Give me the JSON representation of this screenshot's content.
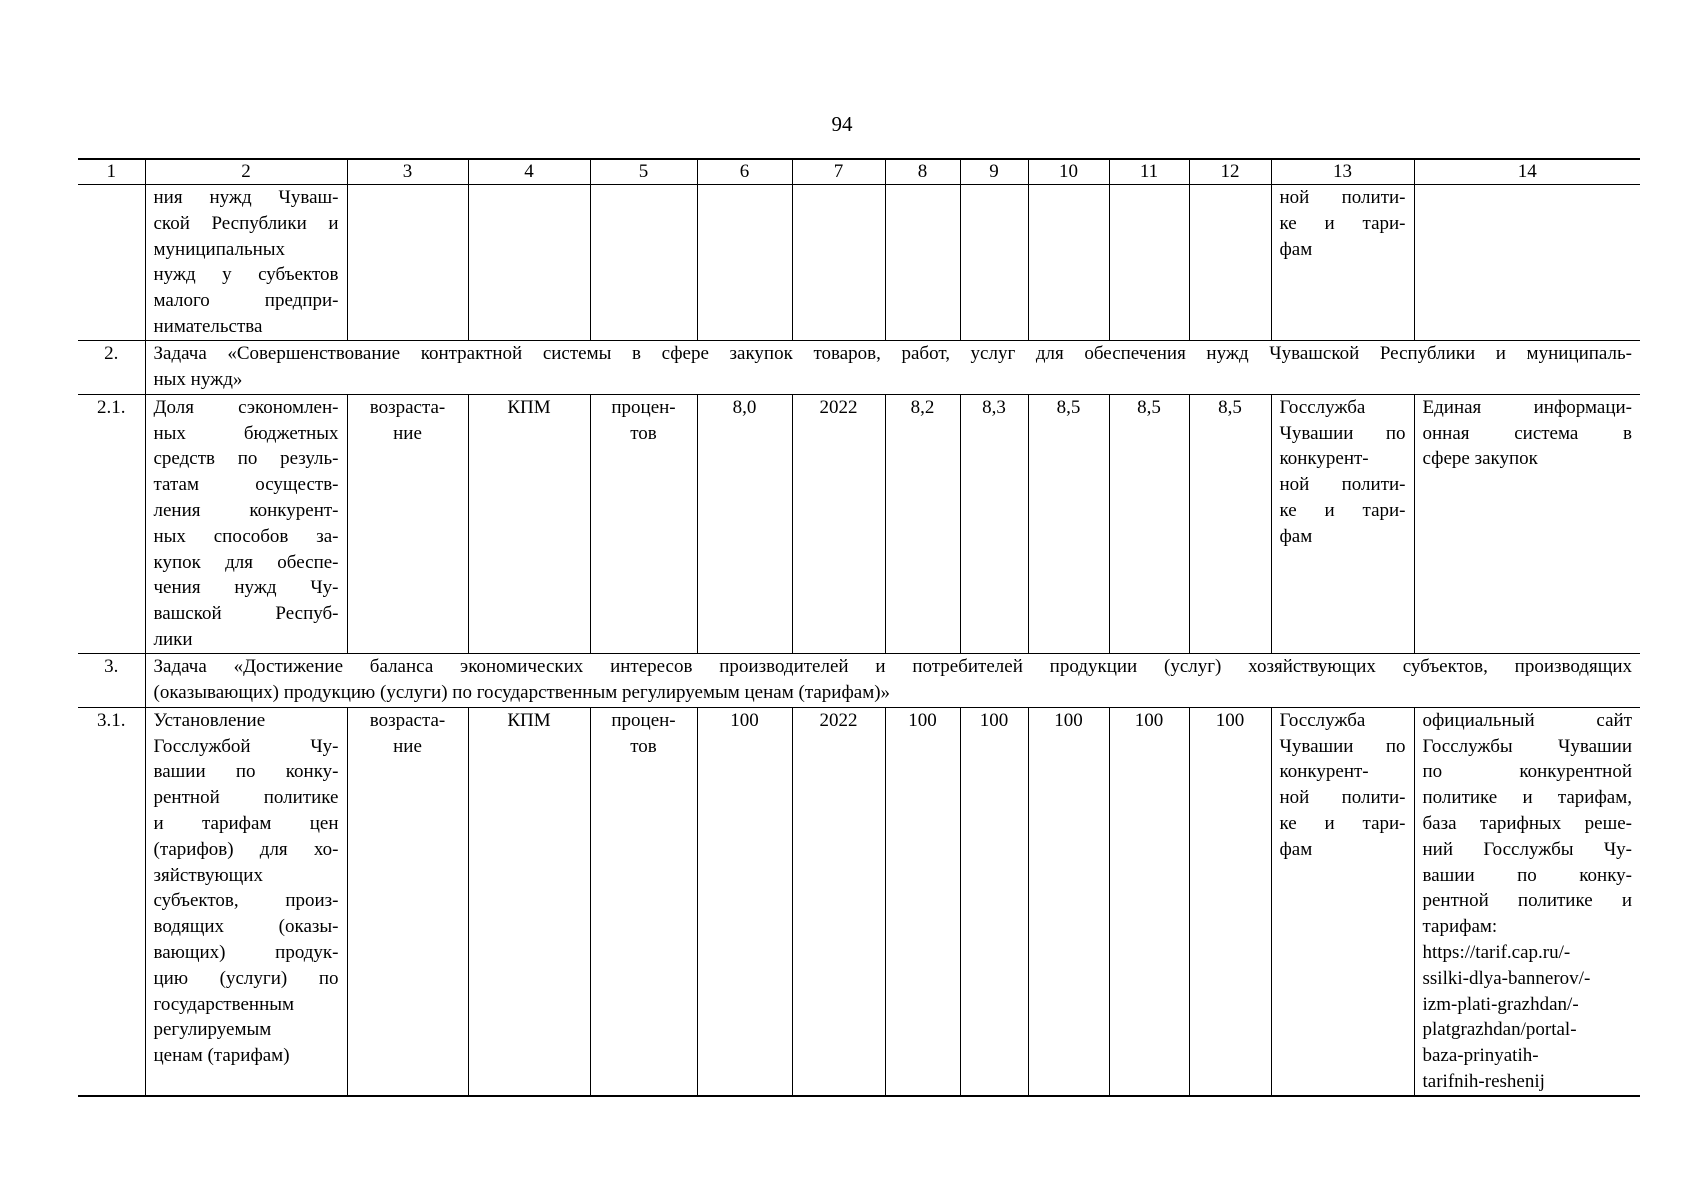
{
  "page_number": "94",
  "header": [
    "1",
    "2",
    "3",
    "4",
    "5",
    "6",
    "7",
    "8",
    "9",
    "10",
    "11",
    "12",
    "13",
    "14"
  ],
  "rows": [
    {
      "type": "data",
      "height": 155,
      "cells": [
        [],
        [
          "ния нужд Чуваш-",
          "ской Республики и",
          "муниципальных",
          "нужд у субъектов",
          "малого предпри-",
          "нимательства"
        ],
        [],
        [],
        [],
        [],
        [],
        [],
        [],
        [],
        [],
        [],
        [
          "ной полити-",
          "ке и тари-",
          "фам"
        ],
        []
      ]
    },
    {
      "type": "task",
      "height": 54,
      "num": "2.",
      "lines": [
        "Задача «Совершенствование контрактной системы в сфере закупок товаров, работ, услуг для обеспечения нужд Чувашской Республики и муниципаль-",
        "ных нужд»"
      ]
    },
    {
      "type": "data",
      "height": 256,
      "cells": [
        [
          "2.1."
        ],
        [
          "Доля сэкономлен-",
          "ных бюджетных",
          "средств по резуль-",
          "татам осуществ-",
          "ления конкурент-",
          "ных способов за-",
          "купок для обеспе-",
          "чения нужд Чу-",
          "вашской Респуб-",
          "лики"
        ],
        [
          "возраста-",
          "ние"
        ],
        [
          "КПМ"
        ],
        [
          "процен-",
          "тов"
        ],
        [
          "8,0"
        ],
        [
          "2022"
        ],
        [
          "8,2"
        ],
        [
          "8,3"
        ],
        [
          "8,5"
        ],
        [
          "8,5"
        ],
        [
          "8,5"
        ],
        [
          "Госслужба",
          "Чувашии по",
          "конкурент-",
          "ной полити-",
          "ке и тари-",
          "фам"
        ],
        [
          "Единая информаци-",
          "онная система в",
          "сфере закупок"
        ]
      ]
    },
    {
      "type": "task",
      "height": 54,
      "num": "3.",
      "lines": [
        "Задача «Достижение баланса экономических интересов производителей и потребителей продукции (услуг) хозяйствующих субъектов, производящих",
        "(оказывающих) продукцию (услуги) по государственным регулируемым ценам (тарифам)»"
      ]
    },
    {
      "type": "data",
      "height": 383,
      "cells": [
        [
          "3.1."
        ],
        [
          "Установление",
          "Госслужбой Чу-",
          "вашии по конку-",
          "рентной политике",
          "и тарифам цен",
          "(тарифов) для хо-",
          "зяйствующих",
          "субъектов, произ-",
          "водящих (оказы-",
          "вающих) продук-",
          "цию (услуги) по",
          "государственным",
          "регулируемым",
          "ценам (тарифам)"
        ],
        [
          "возраста-",
          "ние"
        ],
        [
          "КПМ"
        ],
        [
          "процен-",
          "тов"
        ],
        [
          "100"
        ],
        [
          "2022"
        ],
        [
          "100"
        ],
        [
          "100"
        ],
        [
          "100"
        ],
        [
          "100"
        ],
        [
          "100"
        ],
        [
          "Госслужба",
          "Чувашии по",
          "конкурент-",
          "ной полити-",
          "ке и тари-",
          "фам"
        ],
        [
          "официальный сайт",
          "Госслужбы Чувашии",
          "по конкурентной",
          "политике и тарифам,",
          "база тарифных реше-",
          "ний Госслужбы Чу-",
          "вашии по конку-",
          "рентной политике и",
          "тарифам:",
          "https://tarif.cap.ru/-",
          "ssilki-dlya-bannerov/-",
          "izm-plati-grazhdan/-",
          "platgrazhdan/portal-",
          "baza-prinyatih-",
          "tarifnih-reshenij"
        ]
      ]
    }
  ]
}
